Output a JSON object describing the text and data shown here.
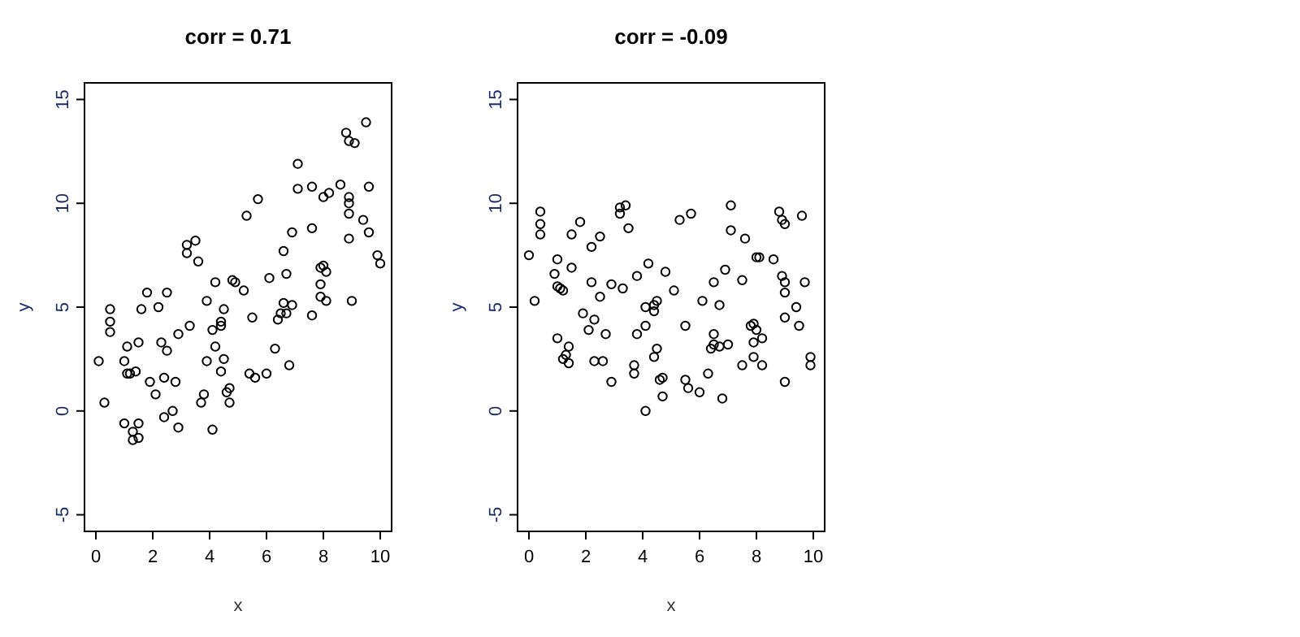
{
  "chart_data": [
    {
      "type": "scatter",
      "title": "corr = 0.71",
      "xlabel": "x",
      "ylabel": "y",
      "xlim": [
        -0.4,
        10.4
      ],
      "ylim": [
        -5.8,
        15.8
      ],
      "xticks": [
        0,
        2,
        4,
        6,
        8,
        10
      ],
      "yticks": [
        -5,
        0,
        5,
        10,
        15
      ],
      "marker": "circle",
      "grid": false,
      "series": [
        {
          "color": "#000000",
          "x": [
            9.5,
            8.8,
            8.9,
            9.1,
            7.1,
            5.7,
            7.1,
            7.6,
            8.0,
            8.2,
            8.6,
            8.9,
            8.9,
            9.6,
            8.9,
            9.4,
            5.3,
            9.6,
            6.9,
            7.6,
            8.9,
            3.5,
            3.2,
            3.2,
            3.6,
            6.6,
            9.9,
            10.0,
            7.9,
            8.0,
            8.1,
            6.7,
            6.1,
            4.8,
            4.9,
            4.2,
            5.2,
            1.8,
            2.5,
            7.9,
            7.9,
            8.1,
            9.0,
            3.9,
            6.6,
            6.9,
            0.5,
            1.6,
            2.2,
            4.5,
            0.5,
            0.5,
            4.4,
            4.4,
            4.1,
            3.3,
            2.9,
            5.5,
            6.4,
            6.5,
            6.7,
            7.6,
            1.1,
            1.5,
            2.3,
            2.5,
            4.2,
            6.3,
            0.1,
            1.0,
            3.9,
            4.5,
            6.8,
            1.1,
            1.2,
            1.4,
            4.4,
            5.4,
            5.6,
            6.0,
            2.4,
            1.9,
            2.8,
            2.1,
            3.8,
            3.7,
            4.6,
            4.7,
            4.7,
            0.3,
            2.7,
            2.4,
            2.9,
            4.1,
            1.0,
            1.5,
            1.3,
            1.3,
            1.5
          ],
          "values": [
            13.9,
            13.4,
            13.0,
            12.9,
            11.9,
            10.2,
            10.7,
            10.8,
            10.3,
            10.5,
            10.9,
            10.3,
            10.0,
            10.8,
            9.5,
            9.2,
            9.4,
            8.6,
            8.6,
            8.8,
            8.3,
            8.2,
            8.0,
            7.6,
            7.2,
            7.7,
            7.5,
            7.1,
            6.9,
            7.0,
            6.7,
            6.6,
            6.4,
            6.3,
            6.2,
            6.2,
            5.8,
            5.7,
            5.7,
            6.1,
            5.5,
            5.3,
            5.3,
            5.3,
            5.2,
            5.1,
            4.9,
            4.9,
            5.0,
            4.9,
            4.3,
            3.8,
            4.3,
            4.1,
            3.9,
            4.1,
            3.7,
            4.5,
            4.4,
            4.7,
            4.7,
            4.6,
            3.1,
            3.3,
            3.3,
            2.9,
            3.1,
            3.0,
            2.4,
            2.4,
            2.4,
            2.5,
            2.2,
            1.8,
            1.8,
            1.9,
            1.9,
            1.8,
            1.6,
            1.8,
            1.6,
            1.4,
            1.4,
            0.8,
            0.8,
            0.4,
            0.9,
            1.1,
            0.4,
            0.4,
            0.0,
            -0.3,
            -0.8,
            -0.9,
            -0.6,
            -0.6,
            -1.0,
            -1.4,
            -1.3
          ]
        }
      ]
    },
    {
      "type": "scatter",
      "title": "corr = -0.09",
      "xlabel": "x",
      "ylabel": "y",
      "xlim": [
        -0.4,
        10.4
      ],
      "ylim": [
        -5.8,
        15.8
      ],
      "xticks": [
        0,
        2,
        4,
        6,
        8,
        10
      ],
      "yticks": [
        -5,
        0,
        5,
        10,
        15
      ],
      "marker": "circle",
      "grid": false,
      "series": [
        {
          "color": "#000000",
          "x": [
            0.4,
            0.4,
            0.4,
            0.0,
            3.2,
            3.4,
            3.2,
            3.5,
            1.8,
            1.5,
            2.5,
            2.2,
            1.0,
            1.5,
            0.9,
            1.0,
            1.1,
            1.2,
            2.2,
            2.5,
            2.9,
            3.3,
            3.8,
            4.2,
            4.8,
            5.3,
            5.7,
            7.1,
            7.1,
            7.6,
            8.0,
            8.1,
            8.6,
            8.8,
            8.9,
            9.0,
            9.6,
            6.9,
            6.5,
            7.5,
            8.9,
            9.0,
            9.0,
            9.7,
            5.1,
            6.1,
            6.7,
            4.5,
            4.4,
            4.1,
            0.2,
            9.4,
            1.9,
            2.3,
            2.1,
            2.7,
            4.4,
            4.1,
            3.8,
            5.5,
            9.0,
            9.5,
            7.8,
            7.9,
            8.0,
            8.2,
            7.9,
            1.0,
            1.4,
            1.3,
            1.2,
            1.4,
            2.3,
            2.6,
            2.9,
            3.7,
            3.7,
            4.5,
            4.4,
            4.6,
            4.7,
            4.7,
            4.1,
            5.5,
            5.6,
            6.0,
            6.3,
            6.4,
            6.5,
            6.7,
            7.0,
            6.5,
            6.8,
            7.5,
            7.9,
            8.2,
            9.0,
            9.9,
            9.9
          ],
          "values": [
            9.6,
            9.0,
            8.5,
            7.5,
            9.8,
            9.9,
            9.5,
            8.8,
            9.1,
            8.5,
            8.4,
            7.9,
            7.3,
            6.9,
            6.6,
            6.0,
            5.9,
            5.8,
            6.2,
            5.5,
            6.1,
            5.9,
            6.5,
            7.1,
            6.7,
            9.2,
            9.5,
            9.9,
            8.7,
            8.3,
            7.4,
            7.4,
            7.3,
            9.6,
            9.2,
            9.0,
            9.4,
            6.8,
            6.2,
            6.3,
            6.5,
            6.2,
            5.7,
            6.2,
            5.8,
            5.3,
            5.1,
            5.3,
            5.1,
            5.0,
            5.3,
            5.0,
            4.7,
            4.4,
            3.9,
            3.7,
            4.8,
            4.1,
            3.7,
            4.1,
            4.5,
            4.1,
            4.1,
            4.2,
            3.9,
            3.5,
            3.3,
            3.5,
            3.1,
            2.7,
            2.5,
            2.3,
            2.4,
            2.4,
            1.4,
            2.2,
            1.8,
            3.0,
            2.6,
            1.5,
            1.6,
            0.7,
            0.0,
            1.5,
            1.1,
            0.9,
            1.8,
            3.0,
            3.2,
            3.1,
            3.2,
            3.7,
            0.6,
            2.2,
            2.6,
            2.2,
            1.4,
            2.6,
            2.2
          ]
        }
      ]
    }
  ]
}
